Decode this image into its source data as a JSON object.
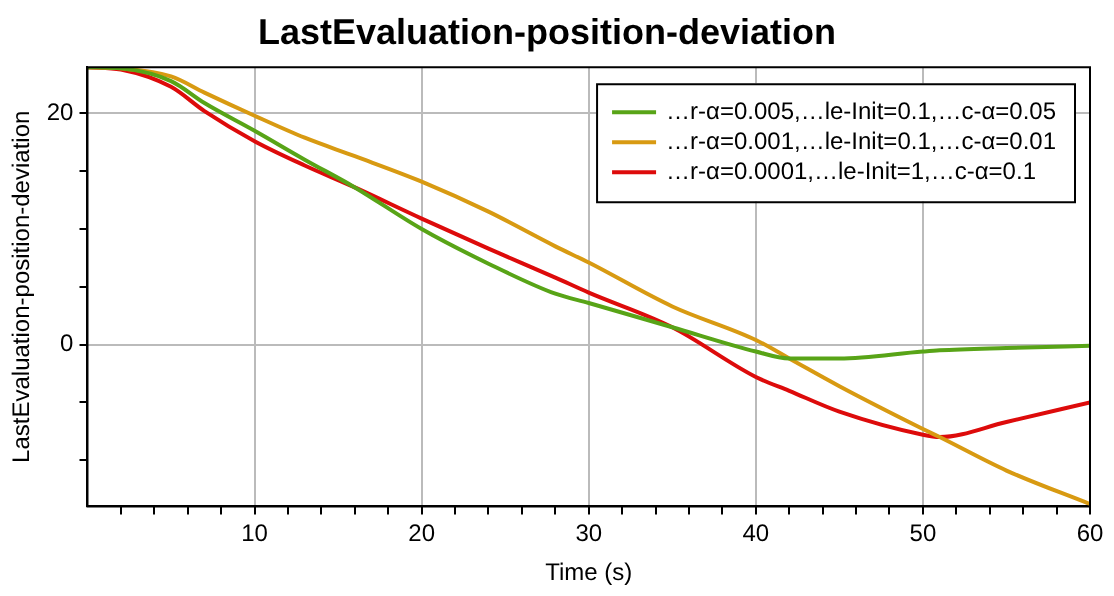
{
  "chart_data": {
    "type": "line",
    "title": "LastEvaluation-position-deviation",
    "xlabel": "Time (s)",
    "ylabel": "LastEvaluation-position-deviation",
    "xlim": [
      0,
      60
    ],
    "ylim": [
      -14,
      24
    ],
    "xticks": [
      {
        "value": 2,
        "label": null
      },
      {
        "value": 4,
        "label": null
      },
      {
        "value": 6,
        "label": null
      },
      {
        "value": 8,
        "label": null
      },
      10,
      {
        "value": 12,
        "label": null
      },
      {
        "value": 14,
        "label": null
      },
      {
        "value": 16,
        "label": null
      },
      {
        "value": 18,
        "label": null
      },
      20,
      {
        "value": 22,
        "label": null
      },
      {
        "value": 24,
        "label": null
      },
      {
        "value": 26,
        "label": null
      },
      {
        "value": 28,
        "label": null
      },
      30,
      {
        "value": 32,
        "label": null
      },
      {
        "value": 34,
        "label": null
      },
      {
        "value": 36,
        "label": null
      },
      {
        "value": 38,
        "label": null
      },
      40,
      {
        "value": 42,
        "label": null
      },
      {
        "value": 44,
        "label": null
      },
      {
        "value": 46,
        "label": null
      },
      {
        "value": 48,
        "label": null
      },
      50,
      {
        "value": 52,
        "label": null
      },
      {
        "value": 54,
        "label": null
      },
      {
        "value": 56,
        "label": null
      },
      {
        "value": 58,
        "label": null
      },
      60
    ],
    "yticks": [
      {
        "value": -10,
        "label": null
      },
      {
        "value": -5,
        "label": null
      },
      0,
      {
        "value": 5,
        "label": null
      },
      {
        "value": 10,
        "label": null
      },
      {
        "value": 15,
        "label": null
      },
      20
    ],
    "grid": true,
    "legend": "top right",
    "marker": "none",
    "line_style": "solid",
    "x": [
      0,
      2,
      5,
      7,
      10,
      13,
      16,
      20,
      24,
      28,
      30,
      35,
      40,
      42,
      45,
      50,
      51,
      55,
      60
    ],
    "series": [
      {
        "name": "…r-α=0.005,…le-Init=0.1,…c-α=0.05",
        "color": "#58a417",
        "values": [
          24,
          23.9,
          22.8,
          20.9,
          18.5,
          16.0,
          13.6,
          10.0,
          7.0,
          4.4,
          3.6,
          1.5,
          -0.6,
          -1.2,
          -1.2,
          -0.6,
          -0.5,
          -0.3,
          -0.1
        ]
      },
      {
        "name": "…r-α=0.001,…le-Init=0.1,…c-α=0.01",
        "color": "#d89a12",
        "values": [
          24,
          23.9,
          23.2,
          21.8,
          19.8,
          17.9,
          16.3,
          14.1,
          11.5,
          8.5,
          7.1,
          3.3,
          0.4,
          -1.2,
          -3.6,
          -7.3,
          -8.0,
          -10.9,
          -13.8
        ]
      },
      {
        "name": "…r-α=0.0001,…le-Init=1,…c-α=0.1",
        "color": "#dd0b0b",
        "values": [
          24,
          23.8,
          22.3,
          20.2,
          17.6,
          15.5,
          13.6,
          10.9,
          8.3,
          5.8,
          4.5,
          1.5,
          -2.8,
          -4.0,
          -5.8,
          -7.8,
          -8.0,
          -6.7,
          -5.0
        ]
      }
    ]
  }
}
